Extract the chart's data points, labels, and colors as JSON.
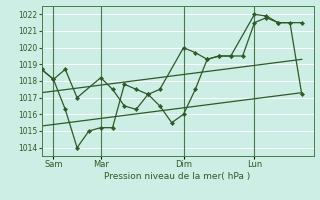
{
  "xlabel": "Pression niveau de la mer( hPa )",
  "bg_color": "#cceee4",
  "grid_color": "#ffffff",
  "line_color": "#2d5a27",
  "vline_color": "#4a7a4a",
  "ylim": [
    1013.5,
    1022.5
  ],
  "yticks": [
    1014,
    1015,
    1016,
    1017,
    1018,
    1019,
    1020,
    1021,
    1022
  ],
  "day_labels": [
    "Sam",
    "Mar",
    "Dim",
    "Lun"
  ],
  "day_positions": [
    1,
    5,
    12,
    18
  ],
  "vline_positions": [
    1,
    5,
    12,
    18
  ],
  "xlim": [
    0,
    23
  ],
  "line1_x": [
    0,
    1,
    2,
    3,
    4,
    5,
    6,
    7,
    8,
    9,
    10,
    11,
    12,
    13,
    14,
    15,
    16,
    17,
    18,
    19,
    20,
    21,
    22
  ],
  "line1_y": [
    1018.7,
    1018.1,
    1016.3,
    1014.0,
    1015.0,
    1015.2,
    1015.2,
    1017.8,
    1017.5,
    1017.2,
    1016.5,
    1015.5,
    1016.0,
    1017.5,
    1019.3,
    1019.5,
    1019.5,
    1019.5,
    1021.5,
    1021.8,
    1021.5,
    1021.5,
    1017.2
  ],
  "line2_x": [
    0,
    1,
    2,
    3,
    5,
    6,
    7,
    8,
    9,
    10,
    12,
    13,
    14,
    15,
    16,
    18,
    19,
    20,
    22
  ],
  "line2_y": [
    1018.7,
    1018.1,
    1018.7,
    1017.0,
    1018.2,
    1017.5,
    1016.5,
    1016.3,
    1017.2,
    1017.5,
    1020.0,
    1019.7,
    1019.3,
    1019.5,
    1019.5,
    1022.0,
    1021.9,
    1021.5,
    1021.5
  ],
  "trend1_x": [
    0,
    22
  ],
  "trend1_y": [
    1017.3,
    1019.3
  ],
  "trend2_x": [
    0,
    22
  ],
  "trend2_y": [
    1015.3,
    1017.3
  ]
}
